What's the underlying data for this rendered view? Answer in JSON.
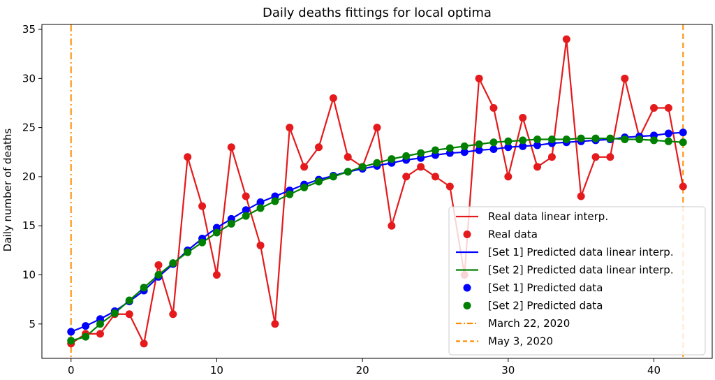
{
  "chart_data": {
    "type": "line",
    "title": "Daily deaths fittings for local optima",
    "xlabel": "",
    "ylabel": "Daily number of deaths",
    "xlim": [
      -2,
      44
    ],
    "ylim": [
      1.5,
      35.5
    ],
    "xticks": [
      0,
      10,
      20,
      30,
      40
    ],
    "yticks": [
      5,
      10,
      15,
      20,
      25,
      30,
      35
    ],
    "grid": false,
    "legend_position": "lower-right",
    "x": [
      0,
      1,
      2,
      3,
      4,
      5,
      6,
      7,
      8,
      9,
      10,
      11,
      12,
      13,
      14,
      15,
      16,
      17,
      18,
      19,
      20,
      21,
      22,
      23,
      24,
      25,
      26,
      27,
      28,
      29,
      30,
      31,
      32,
      33,
      34,
      35,
      36,
      37,
      38,
      39,
      40,
      41,
      42
    ],
    "series": [
      {
        "name": "Real data linear interp.",
        "marker_name": "Real data",
        "color": "#e41a1c",
        "values": [
          3,
          4,
          4,
          6,
          6,
          3,
          11,
          6,
          22,
          17,
          10,
          23,
          18,
          13,
          5,
          25,
          21,
          23,
          28,
          22,
          21,
          25,
          15,
          20,
          21,
          20,
          19,
          10,
          30,
          27,
          20,
          26,
          21,
          22,
          34,
          18,
          22,
          22,
          30,
          24,
          27,
          27,
          19
        ]
      },
      {
        "name": "[Set 1] Predicted data linear interp.",
        "marker_name": "[Set 1] Predicted data",
        "color": "#0000ff",
        "values": [
          4.2,
          4.8,
          5.5,
          6.3,
          7.3,
          8.4,
          9.8,
          11.1,
          12.5,
          13.7,
          14.8,
          15.7,
          16.6,
          17.4,
          18.0,
          18.6,
          19.2,
          19.7,
          20.1,
          20.5,
          20.8,
          21.1,
          21.4,
          21.7,
          21.9,
          22.2,
          22.4,
          22.5,
          22.7,
          22.8,
          23.0,
          23.1,
          23.2,
          23.4,
          23.5,
          23.6,
          23.7,
          23.8,
          24.0,
          24.1,
          24.2,
          24.4,
          24.5
        ]
      },
      {
        "name": "[Set 2] Predicted data linear interp.",
        "marker_name": "[Set 2] Predicted data",
        "color": "#008000",
        "values": [
          3.3,
          3.7,
          5.0,
          6.1,
          7.4,
          8.7,
          10.0,
          11.2,
          12.3,
          13.3,
          14.3,
          15.2,
          16.0,
          16.8,
          17.5,
          18.2,
          18.9,
          19.5,
          20.0,
          20.5,
          21.0,
          21.4,
          21.8,
          22.1,
          22.4,
          22.7,
          22.9,
          23.1,
          23.3,
          23.5,
          23.6,
          23.7,
          23.8,
          23.8,
          23.8,
          23.9,
          23.9,
          23.9,
          23.8,
          23.8,
          23.7,
          23.6,
          23.5
        ]
      }
    ],
    "vlines": [
      {
        "name": "March 22, 2020",
        "x": 0,
        "style": "dashdot",
        "color": "#ff8c00"
      },
      {
        "name": "May 3, 2020",
        "x": 42,
        "style": "dashed",
        "color": "#ff8c00"
      }
    ]
  }
}
